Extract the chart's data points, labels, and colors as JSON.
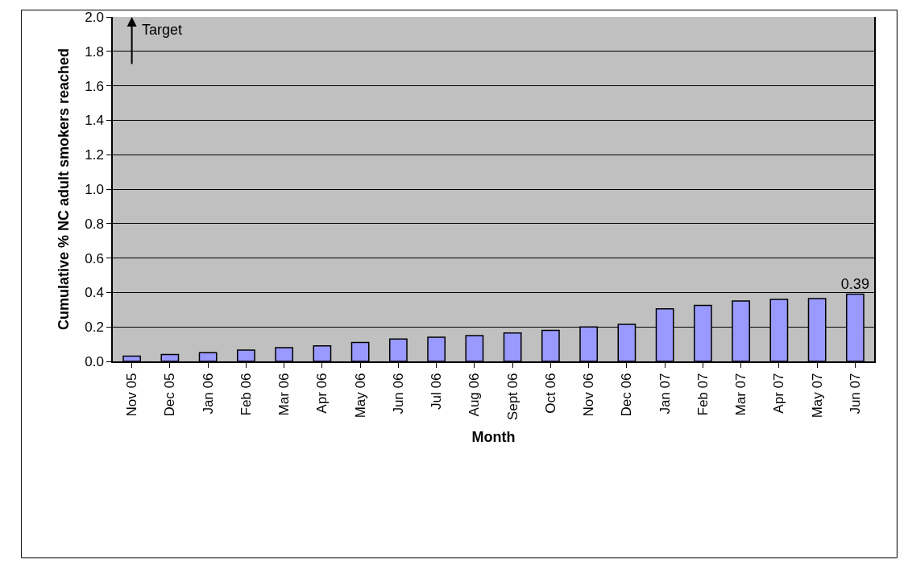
{
  "chart_data": {
    "type": "bar",
    "xlabel": "Month",
    "ylabel": "Cumulative % NC adult smokers reached",
    "categories": [
      "Nov 05",
      "Dec 05",
      "Jan 06",
      "Feb 06",
      "Mar 06",
      "Apr 06",
      "May 06",
      "Jun 06",
      "Jul 06",
      "Aug 06",
      "Sept 06",
      "Oct 06",
      "Nov 06",
      "Dec 06",
      "Jan 07",
      "Feb 07",
      "Mar 07",
      "Apr 07",
      "May 07",
      "Jun 07"
    ],
    "values": [
      0.03,
      0.04,
      0.05,
      0.065,
      0.08,
      0.09,
      0.11,
      0.13,
      0.14,
      0.15,
      0.165,
      0.18,
      0.2,
      0.215,
      0.305,
      0.325,
      0.35,
      0.36,
      0.365,
      0.39
    ],
    "value_labels": [
      null,
      null,
      null,
      null,
      null,
      null,
      null,
      null,
      null,
      null,
      null,
      null,
      null,
      null,
      null,
      null,
      null,
      null,
      null,
      "0.39"
    ],
    "color": "#9999ff",
    "ylim": [
      0,
      2
    ],
    "yticks": [
      {
        "value": 0,
        "label": "0.0"
      },
      {
        "value": 0.2,
        "label": "0.2"
      },
      {
        "value": 0.4,
        "label": "0.4"
      },
      {
        "value": 0.6,
        "label": "0.6"
      },
      {
        "value": 0.8,
        "label": "0.8"
      },
      {
        "value": 1,
        "label": "1.0"
      },
      {
        "value": 1.2,
        "label": "1.2"
      },
      {
        "value": 1.4,
        "label": "1.4"
      },
      {
        "value": 1.6,
        "label": "1.6"
      },
      {
        "value": 1.8,
        "label": "1.8"
      },
      {
        "value": 2,
        "label": "2.0"
      }
    ],
    "grid": "y",
    "annotations": [
      "Target"
    ]
  }
}
